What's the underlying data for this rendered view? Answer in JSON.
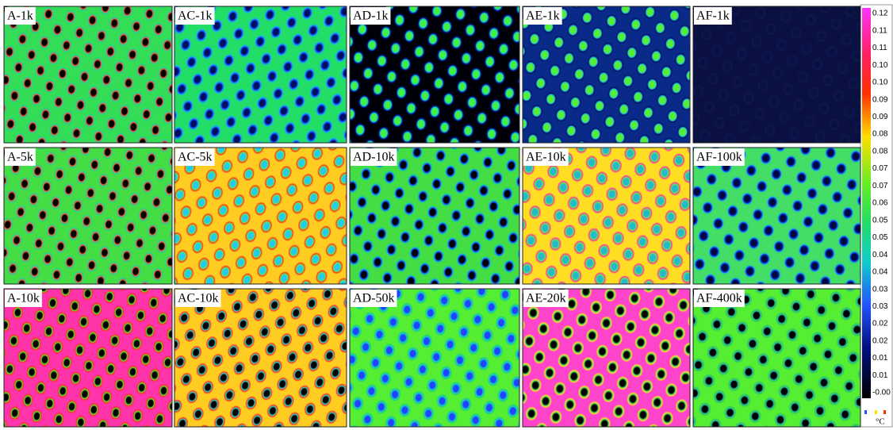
{
  "panels": [
    [
      "A-1k",
      "AC-1k",
      "AD-1k",
      "AE-1k",
      "AF-1k"
    ],
    [
      "A-5k",
      "AC-5k",
      "AD-10k",
      "AE-10k",
      "AF-100k"
    ],
    [
      "A-10k",
      "AC-10k",
      "AD-50k",
      "AE-20k",
      "AF-400k"
    ]
  ],
  "colorbar": {
    "ticks": [
      "0.12",
      "0.11",
      "0.11",
      "0.10",
      "0.10",
      "0.09",
      "0.09",
      "0.08",
      "0.08",
      "0.07",
      "0.07",
      "0.06",
      "0.05",
      "0.05",
      "0.04",
      "0.04",
      "0.03",
      "0.03",
      "0.02",
      "0.02",
      "0.01",
      "0.01",
      "-0.00"
    ],
    "unit": "°C"
  }
}
